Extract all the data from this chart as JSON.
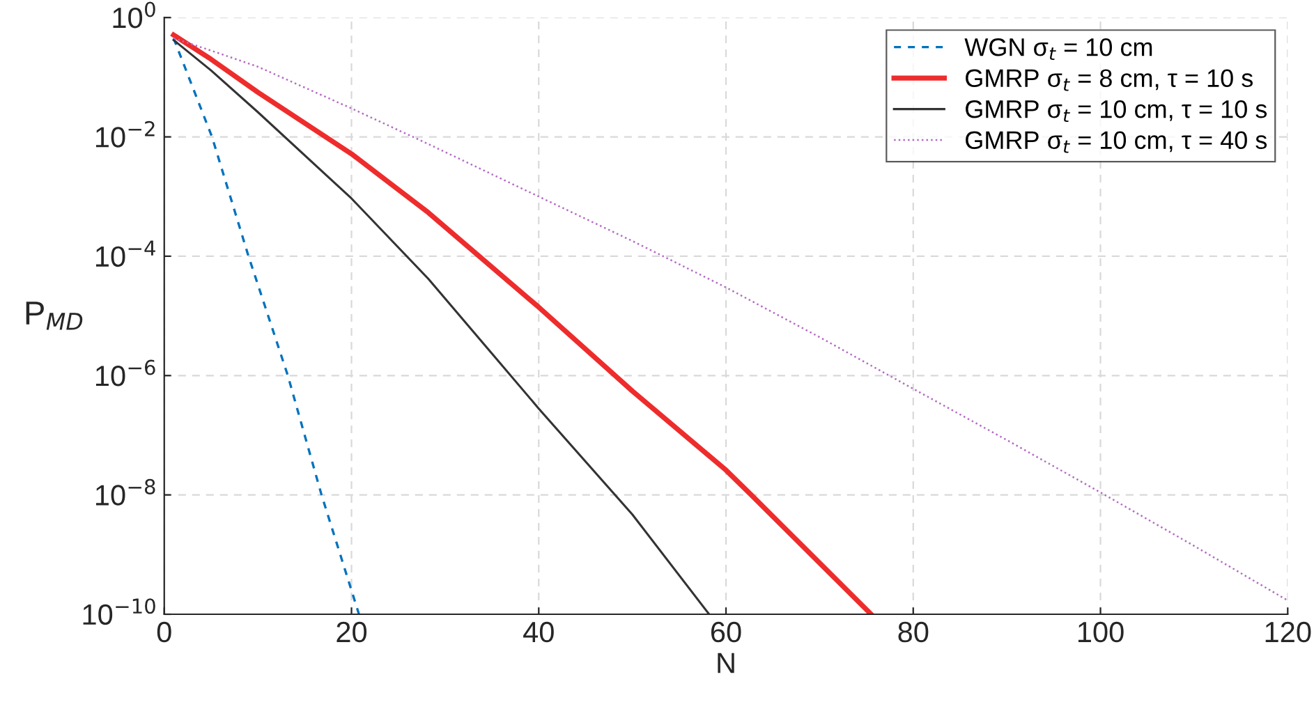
{
  "chart_data": {
    "type": "line",
    "xlabel": "N",
    "ylabel": "P$_{MD}$",
    "log": "y",
    "xlim": [
      0,
      120
    ],
    "ylim": [
      1e-10,
      1
    ],
    "xticks": [
      0,
      20,
      40,
      60,
      80,
      100,
      120
    ],
    "yticks": [
      {
        "value": 1,
        "label": "10$^{0}$"
      },
      {
        "value": 0.01,
        "label": "10$^{−2}$"
      },
      {
        "value": 0.0001,
        "label": "10$^{−4}$"
      },
      {
        "value": 1e-06,
        "label": "10$^{−6}$"
      },
      {
        "value": 1e-08,
        "label": "10$^{−8}$"
      },
      {
        "value": 1e-10,
        "label": "10$^{−10}$"
      }
    ],
    "grid": true,
    "legend": "top right",
    "series": [
      {
        "name": "WGN σ$_{t}$ = 10 cm",
        "color": "#0072bd",
        "line_style": "dashed",
        "x": [
          1,
          5.1,
          9,
          13.2,
          16.8,
          20.8
        ],
        "values": [
          0.45,
          0.01,
          0.0001,
          1e-06,
          1e-08,
          1e-10
        ]
      },
      {
        "name": "GMRP σ$_{t}$ = 8 cm, τ = 10 s",
        "color": "#ee2c2c",
        "line_style": "solid",
        "x": [
          1,
          5,
          10,
          20,
          28.2,
          40,
          50,
          60,
          62.7,
          75.5
        ],
        "values": [
          0.51,
          0.2,
          0.056,
          0.0052,
          0.00054,
          1.4e-05,
          5.5e-07,
          2.6e-08,
          1e-08,
          1e-10
        ]
      },
      {
        "name": "GMRP σ$_{t}$ = 10 cm, τ = 10 s",
        "color": "#333333",
        "line_style": "solid",
        "x": [
          1,
          5,
          10,
          20,
          28.2,
          40,
          50,
          58.2
        ],
        "values": [
          0.42,
          0.13,
          0.026,
          0.00093,
          4.2e-05,
          2.8e-07,
          4.7e-09,
          1e-10
        ]
      },
      {
        "name": "GMRP σ$_{t}$ = 10 cm, τ = 40 s",
        "color": "#b36bc4",
        "line_style": "dotted",
        "x": [
          1,
          5,
          10,
          20,
          28.2,
          40,
          50,
          60,
          70,
          80,
          90,
          100,
          110,
          120
        ],
        "values": [
          0.45,
          0.28,
          0.15,
          0.03,
          0.0076,
          0.001,
          0.00018,
          3e-05,
          4.4e-06,
          6e-07,
          8.3e-08,
          1.1e-08,
          1.4e-09,
          1.7e-10
        ]
      }
    ]
  }
}
